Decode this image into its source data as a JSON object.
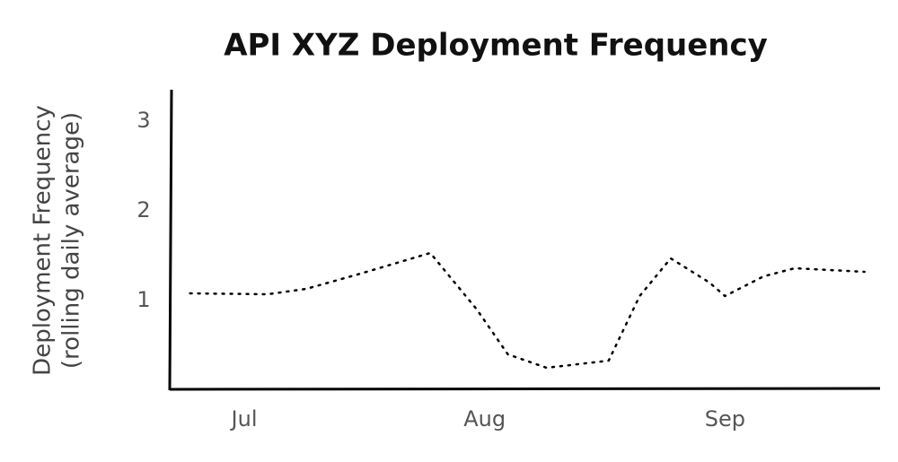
{
  "chart_data": {
    "type": "line",
    "title": "API XYZ Deployment Frequency",
    "ylabel": [
      "Deployment Frequency",
      "(rolling daily average)"
    ],
    "x": [
      -7,
      3,
      8,
      15,
      24,
      30,
      34,
      39,
      47,
      51,
      55,
      60,
      62,
      67,
      71,
      80
    ],
    "series": [
      {
        "color": "#000000",
        "values": [
          1.08,
          1.07,
          1.13,
          1.3,
          1.53,
          0.9,
          0.4,
          0.25,
          0.33,
          1.05,
          1.47,
          1.2,
          1.05,
          1.27,
          1.36,
          1.32
        ]
      }
    ],
    "xlim": [
      -9.5,
      82
    ],
    "ylim": [
      0,
      3.35
    ],
    "xticks": [
      {
        "value": 0,
        "label": "Jul"
      },
      {
        "value": 31,
        "label": "Aug"
      },
      {
        "value": 62,
        "label": "Sep"
      }
    ],
    "yticks": [
      1,
      2,
      3
    ],
    "grid": false
  }
}
